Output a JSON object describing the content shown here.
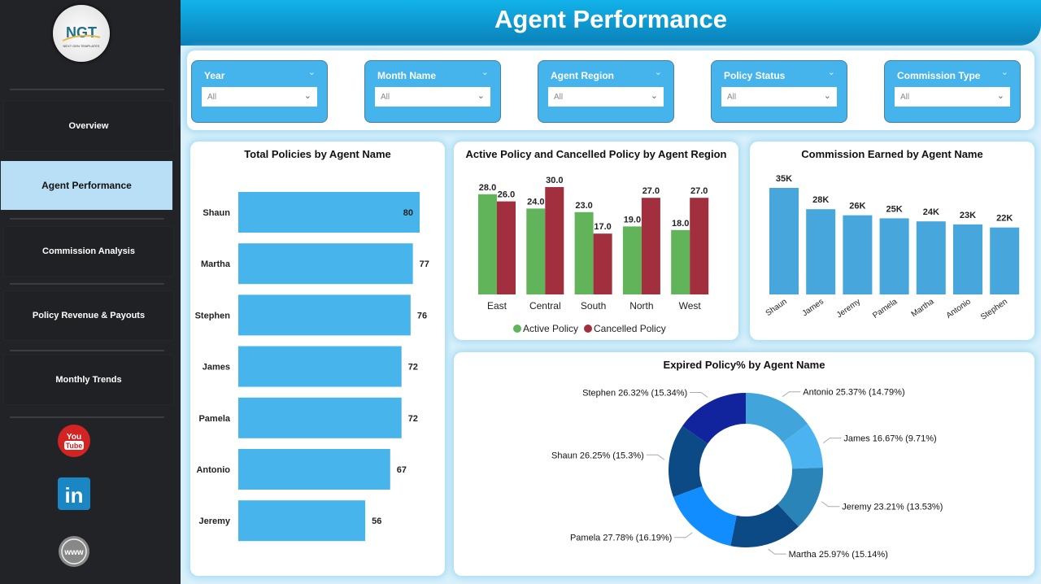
{
  "sidebar": {
    "logo_text": "NGT",
    "logo_subtext": "NEXT GEN TEMPLATES",
    "items": [
      {
        "label": "Overview"
      },
      {
        "label": "Agent Performance",
        "active": true
      },
      {
        "label": "Commission Analysis"
      },
      {
        "label": "Policy Revenue & Payouts"
      },
      {
        "label": "Monthly Trends"
      }
    ],
    "social": [
      "youtube-icon",
      "linkedin-icon",
      "website-icon"
    ]
  },
  "header": {
    "title": "Agent Performance"
  },
  "filters": [
    {
      "label": "Year",
      "value": "All"
    },
    {
      "label": "Month Name",
      "value": "All"
    },
    {
      "label": "Agent Region",
      "value": "All"
    },
    {
      "label": "Policy Status",
      "value": "All"
    },
    {
      "label": "Commission Type",
      "value": "All"
    }
  ],
  "colors": {
    "bar_blue": "#47b4ec",
    "active": "#62b45a",
    "cancelled": "#a12f3d",
    "commission": "#47a6dc"
  },
  "chart_data": [
    {
      "type": "bar",
      "orientation": "horizontal",
      "title": "Total Policies by Agent Name",
      "categories": [
        "Shaun",
        "Martha",
        "Stephen",
        "James",
        "Pamela",
        "Antonio",
        "Jeremy"
      ],
      "values": [
        80,
        77,
        76,
        72,
        72,
        67,
        56
      ]
    },
    {
      "type": "bar",
      "title": "Active Policy and Cancelled Policy by Agent Region",
      "categories": [
        "East",
        "Central",
        "South",
        "North",
        "West"
      ],
      "series": [
        {
          "name": "Active Policy",
          "values": [
            28.0,
            24.0,
            23.0,
            19.0,
            18.0
          ]
        },
        {
          "name": "Cancelled Policy",
          "values": [
            26.0,
            30.0,
            17.0,
            27.0,
            27.0
          ]
        }
      ],
      "legend": "bottom"
    },
    {
      "type": "bar",
      "title": "Commission Earned by Agent Name",
      "categories": [
        "Shaun",
        "James",
        "Jeremy",
        "Pamela",
        "Martha",
        "Antonio",
        "Stephen"
      ],
      "values": [
        35000,
        28000,
        26000,
        25000,
        24000,
        23000,
        22000
      ],
      "labels": [
        "35K",
        "28K",
        "26K",
        "25K",
        "24K",
        "23K",
        "22K"
      ]
    },
    {
      "type": "pie",
      "donut": true,
      "title": "Expired Policy% by Agent Name",
      "categories": [
        "Antonio",
        "James",
        "Jeremy",
        "Martha",
        "Pamela",
        "Shaun",
        "Stephen"
      ],
      "values": [
        25.37,
        16.67,
        23.21,
        25.97,
        27.78,
        26.25,
        26.32
      ],
      "shares": [
        14.79,
        9.71,
        13.53,
        15.14,
        16.19,
        15.3,
        15.34
      ],
      "labels": [
        "Antonio 25.37% (14.79%)",
        "James 16.67% (9.71%)",
        "Jeremy 23.21% (13.53%)",
        "Martha 25.97% (15.14%)",
        "Pamela 27.78% (16.19%)",
        "Shaun 26.25% (15.3%)",
        "Stephen 26.32% (15.34%)"
      ],
      "colors": [
        "#41a5dc",
        "#4bb4f0",
        "#2b84b8",
        "#0c4a86",
        "#118dff",
        "#0b4a85",
        "#12239e"
      ]
    }
  ]
}
